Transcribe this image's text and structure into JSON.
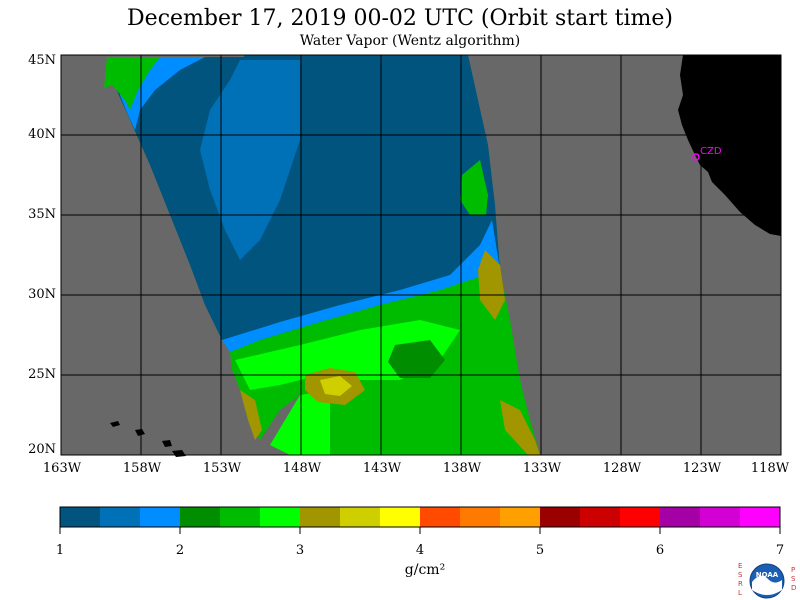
{
  "title": "December 17, 2019  00-02 UTC  (Orbit start time)",
  "subtitle": "Water Vapor (Wentz algorithm)",
  "map": {
    "lat_labels": [
      "45N",
      "40N",
      "35N",
      "30N",
      "25N",
      "20N"
    ],
    "lon_labels": [
      "163W",
      "158W",
      "153W",
      "148W",
      "143W",
      "138W",
      "133W",
      "128W",
      "123W",
      "118W"
    ],
    "station_label": "CZD",
    "colors": {
      "ocean_no_data": "#686868",
      "land": "#000000",
      "grid": "#000000",
      "station": "#ff00ff"
    }
  },
  "colorbar": {
    "unit": "g/cm²",
    "tick_labels": [
      "1",
      "2",
      "3",
      "4",
      "5",
      "6",
      "7"
    ],
    "colors": [
      "#00547e",
      "#0071b7",
      "#008dff",
      "#008d00",
      "#00bc00",
      "#00ff00",
      "#a19500",
      "#cfcf00",
      "#ffff00",
      "#ff4a00",
      "#ff7a00",
      "#ffa000",
      "#9b0000",
      "#cc0000",
      "#ff0000",
      "#a500a5",
      "#d200d2",
      "#ff00ff"
    ]
  },
  "logo": {
    "left_letters": "ESRL",
    "right_letters": "PSD",
    "center_text": "NOAA"
  }
}
